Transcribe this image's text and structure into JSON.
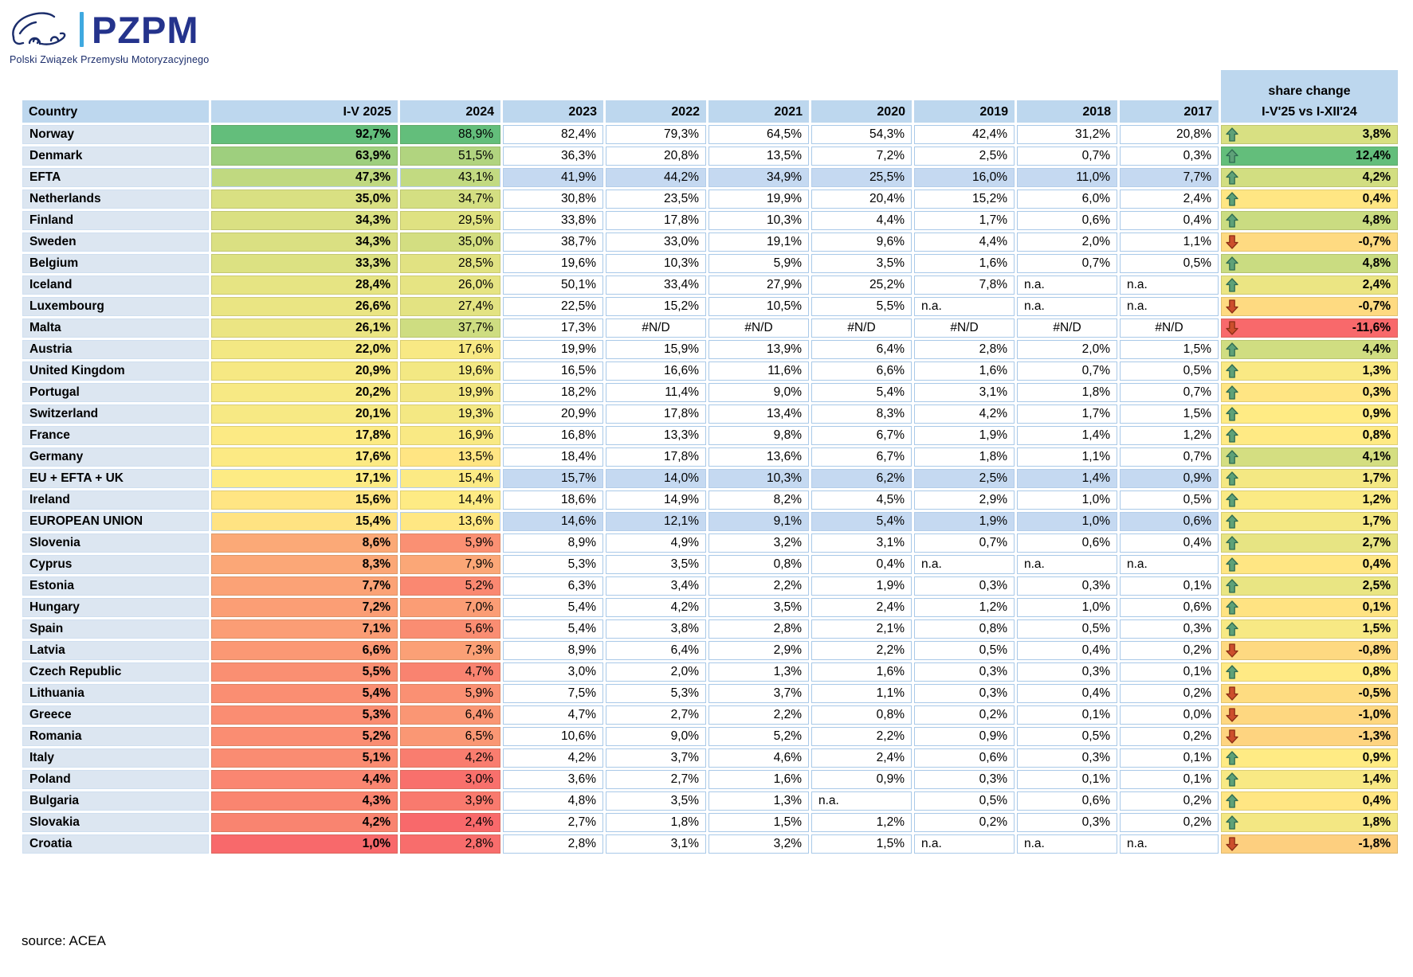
{
  "logo": {
    "acronym": "PZPM",
    "subtitle": "Polski Związek Przemysłu Motoryzacyjnego"
  },
  "header": {
    "share_change_line1": "share change",
    "share_change_line2": "I-V'25 vs I-XII'24"
  },
  "footer": {
    "source": "source: ACEA"
  },
  "colors": {
    "header_blue": "#BDD7EE",
    "country_cell_blue": "#DCE6F1",
    "aggregate_row_blue": "#C5D9F1",
    "cell_border_blue": "#A9C9E8",
    "logo_navy": "#24338C",
    "logo_light_blue": "#3FA9E0",
    "up_arrow": "#5EA178",
    "up_arrow_border": "#2F6B52",
    "down_arrow": "#CC4E2C",
    "down_arrow_border": "#8C2F16"
  },
  "chart_data": {
    "type": "table",
    "unit": "%",
    "source": "ACEA",
    "columns": [
      "Country",
      "I-V 2025",
      "2024",
      "2023",
      "2022",
      "2021",
      "2020",
      "2019",
      "2018",
      "2017",
      "share change I-V'25 vs I-XII'24"
    ],
    "scale_colors": {
      "low": "#F8696B",
      "mid": "#FFEB84",
      "high": "#63BE7B"
    },
    "col_scales": {
      "v2025": {
        "min": 1.0,
        "mid": 16.35,
        "max": 92.7
      },
      "v2024": {
        "min": 2.4,
        "mid": 14.0,
        "max": 88.9
      },
      "change": {
        "min": -11.6,
        "mid": 0.9,
        "max": 12.4
      }
    },
    "rows": [
      {
        "country": "Norway",
        "cells": [
          "92,7%",
          "88,9%",
          "82,4%",
          "79,3%",
          "64,5%",
          "54,3%",
          "42,4%",
          "31,2%",
          "20,8%"
        ],
        "change": "3,8%",
        "trend": "up",
        "agg": false
      },
      {
        "country": "Denmark",
        "cells": [
          "63,9%",
          "51,5%",
          "36,3%",
          "20,8%",
          "13,5%",
          "7,2%",
          "2,5%",
          "0,7%",
          "0,3%"
        ],
        "change": "12,4%",
        "trend": "up",
        "agg": false
      },
      {
        "country": "EFTA",
        "cells": [
          "47,3%",
          "43,1%",
          "41,9%",
          "44,2%",
          "34,9%",
          "25,5%",
          "16,0%",
          "11,0%",
          "7,7%"
        ],
        "change": "4,2%",
        "trend": "up",
        "agg": true
      },
      {
        "country": "Netherlands",
        "cells": [
          "35,0%",
          "34,7%",
          "30,8%",
          "23,5%",
          "19,9%",
          "20,4%",
          "15,2%",
          "6,0%",
          "2,4%"
        ],
        "change": "0,4%",
        "trend": "up",
        "agg": false
      },
      {
        "country": "Finland",
        "cells": [
          "34,3%",
          "29,5%",
          "33,8%",
          "17,8%",
          "10,3%",
          "4,4%",
          "1,7%",
          "0,6%",
          "0,4%"
        ],
        "change": "4,8%",
        "trend": "up",
        "agg": false
      },
      {
        "country": "Sweden",
        "cells": [
          "34,3%",
          "35,0%",
          "38,7%",
          "33,0%",
          "19,1%",
          "9,6%",
          "4,4%",
          "2,0%",
          "1,1%"
        ],
        "change": "-0,7%",
        "trend": "down",
        "agg": false
      },
      {
        "country": "Belgium",
        "cells": [
          "33,3%",
          "28,5%",
          "19,6%",
          "10,3%",
          "5,9%",
          "3,5%",
          "1,6%",
          "0,7%",
          "0,5%"
        ],
        "change": "4,8%",
        "trend": "up",
        "agg": false
      },
      {
        "country": "Iceland",
        "cells": [
          "28,4%",
          "26,0%",
          "50,1%",
          "33,4%",
          "27,9%",
          "25,2%",
          "7,8%",
          "n.a.",
          "n.a."
        ],
        "change": "2,4%",
        "trend": "up",
        "agg": false
      },
      {
        "country": "Luxembourg",
        "cells": [
          "26,6%",
          "27,4%",
          "22,5%",
          "15,2%",
          "10,5%",
          "5,5%",
          "n.a.",
          "n.a.",
          "n.a."
        ],
        "change": "-0,7%",
        "trend": "down",
        "agg": false
      },
      {
        "country": "Malta",
        "cells": [
          "26,1%",
          "37,7%",
          "17,3%",
          "#N/D",
          "#N/D",
          "#N/D",
          "#N/D",
          "#N/D",
          "#N/D"
        ],
        "change": "-11,6%",
        "trend": "down",
        "agg": false
      },
      {
        "country": "Austria",
        "cells": [
          "22,0%",
          "17,6%",
          "19,9%",
          "15,9%",
          "13,9%",
          "6,4%",
          "2,8%",
          "2,0%",
          "1,5%"
        ],
        "change": "4,4%",
        "trend": "up",
        "agg": false
      },
      {
        "country": "United Kingdom",
        "cells": [
          "20,9%",
          "19,6%",
          "16,5%",
          "16,6%",
          "11,6%",
          "6,6%",
          "1,6%",
          "0,7%",
          "0,5%"
        ],
        "change": "1,3%",
        "trend": "up",
        "agg": false
      },
      {
        "country": "Portugal",
        "cells": [
          "20,2%",
          "19,9%",
          "18,2%",
          "11,4%",
          "9,0%",
          "5,4%",
          "3,1%",
          "1,8%",
          "0,7%"
        ],
        "change": "0,3%",
        "trend": "up",
        "agg": false
      },
      {
        "country": "Switzerland",
        "cells": [
          "20,1%",
          "19,3%",
          "20,9%",
          "17,8%",
          "13,4%",
          "8,3%",
          "4,2%",
          "1,7%",
          "1,5%"
        ],
        "change": "0,9%",
        "trend": "up",
        "agg": false
      },
      {
        "country": "France",
        "cells": [
          "17,8%",
          "16,9%",
          "16,8%",
          "13,3%",
          "9,8%",
          "6,7%",
          "1,9%",
          "1,4%",
          "1,2%"
        ],
        "change": "0,8%",
        "trend": "up",
        "agg": false
      },
      {
        "country": "Germany",
        "cells": [
          "17,6%",
          "13,5%",
          "18,4%",
          "17,8%",
          "13,6%",
          "6,7%",
          "1,8%",
          "1,1%",
          "0,7%"
        ],
        "change": "4,1%",
        "trend": "up",
        "agg": false
      },
      {
        "country": "EU + EFTA + UK",
        "cells": [
          "17,1%",
          "15,4%",
          "15,7%",
          "14,0%",
          "10,3%",
          "6,2%",
          "2,5%",
          "1,4%",
          "0,9%"
        ],
        "change": "1,7%",
        "trend": "up",
        "agg": true
      },
      {
        "country": "Ireland",
        "cells": [
          "15,6%",
          "14,4%",
          "18,6%",
          "14,9%",
          "8,2%",
          "4,5%",
          "2,9%",
          "1,0%",
          "0,5%"
        ],
        "change": "1,2%",
        "trend": "up",
        "agg": false
      },
      {
        "country": "EUROPEAN UNION",
        "cells": [
          "15,4%",
          "13,6%",
          "14,6%",
          "12,1%",
          "9,1%",
          "5,4%",
          "1,9%",
          "1,0%",
          "0,6%"
        ],
        "change": "1,7%",
        "trend": "up",
        "agg": true
      },
      {
        "country": "Slovenia",
        "cells": [
          "8,6%",
          "5,9%",
          "8,9%",
          "4,9%",
          "3,2%",
          "3,1%",
          "0,7%",
          "0,6%",
          "0,4%"
        ],
        "change": "2,7%",
        "trend": "up",
        "agg": false
      },
      {
        "country": "Cyprus",
        "cells": [
          "8,3%",
          "7,9%",
          "5,3%",
          "3,5%",
          "0,8%",
          "0,4%",
          "n.a.",
          "n.a.",
          "n.a."
        ],
        "change": "0,4%",
        "trend": "up",
        "agg": false
      },
      {
        "country": "Estonia",
        "cells": [
          "7,7%",
          "5,2%",
          "6,3%",
          "3,4%",
          "2,2%",
          "1,9%",
          "0,3%",
          "0,3%",
          "0,1%"
        ],
        "change": "2,5%",
        "trend": "up",
        "agg": false
      },
      {
        "country": "Hungary",
        "cells": [
          "7,2%",
          "7,0%",
          "5,4%",
          "4,2%",
          "3,5%",
          "2,4%",
          "1,2%",
          "1,0%",
          "0,6%"
        ],
        "change": "0,1%",
        "trend": "up",
        "agg": false
      },
      {
        "country": "Spain",
        "cells": [
          "7,1%",
          "5,6%",
          "5,4%",
          "3,8%",
          "2,8%",
          "2,1%",
          "0,8%",
          "0,5%",
          "0,3%"
        ],
        "change": "1,5%",
        "trend": "up",
        "agg": false
      },
      {
        "country": "Latvia",
        "cells": [
          "6,6%",
          "7,3%",
          "8,9%",
          "6,4%",
          "2,9%",
          "2,2%",
          "0,5%",
          "0,4%",
          "0,2%"
        ],
        "change": "-0,8%",
        "trend": "down",
        "agg": false
      },
      {
        "country": "Czech Republic",
        "cells": [
          "5,5%",
          "4,7%",
          "3,0%",
          "2,0%",
          "1,3%",
          "1,6%",
          "0,3%",
          "0,3%",
          "0,1%"
        ],
        "change": "0,8%",
        "trend": "up",
        "agg": false
      },
      {
        "country": "Lithuania",
        "cells": [
          "5,4%",
          "5,9%",
          "7,5%",
          "5,3%",
          "3,7%",
          "1,1%",
          "0,3%",
          "0,4%",
          "0,2%"
        ],
        "change": "-0,5%",
        "trend": "down",
        "agg": false
      },
      {
        "country": "Greece",
        "cells": [
          "5,3%",
          "6,4%",
          "4,7%",
          "2,7%",
          "2,2%",
          "0,8%",
          "0,2%",
          "0,1%",
          "0,0%"
        ],
        "change": "-1,0%",
        "trend": "down",
        "agg": false
      },
      {
        "country": "Romania",
        "cells": [
          "5,2%",
          "6,5%",
          "10,6%",
          "9,0%",
          "5,2%",
          "2,2%",
          "0,9%",
          "0,5%",
          "0,2%"
        ],
        "change": "-1,3%",
        "trend": "down",
        "agg": false
      },
      {
        "country": "Italy",
        "cells": [
          "5,1%",
          "4,2%",
          "4,2%",
          "3,7%",
          "4,6%",
          "2,4%",
          "0,6%",
          "0,3%",
          "0,1%"
        ],
        "change": "0,9%",
        "trend": "up",
        "agg": false
      },
      {
        "country": "Poland",
        "cells": [
          "4,4%",
          "3,0%",
          "3,6%",
          "2,7%",
          "1,6%",
          "0,9%",
          "0,3%",
          "0,1%",
          "0,1%"
        ],
        "change": "1,4%",
        "trend": "up",
        "agg": false
      },
      {
        "country": "Bulgaria",
        "cells": [
          "4,3%",
          "3,9%",
          "4,8%",
          "3,5%",
          "1,3%",
          "n.a.",
          "0,5%",
          "0,6%",
          "0,2%"
        ],
        "change": "0,4%",
        "trend": "up",
        "agg": false
      },
      {
        "country": "Slovakia",
        "cells": [
          "4,2%",
          "2,4%",
          "2,7%",
          "1,8%",
          "1,5%",
          "1,2%",
          "0,2%",
          "0,3%",
          "0,2%"
        ],
        "change": "1,8%",
        "trend": "up",
        "agg": false
      },
      {
        "country": "Croatia",
        "cells": [
          "1,0%",
          "2,8%",
          "2,8%",
          "3,1%",
          "3,2%",
          "1,5%",
          "n.a.",
          "n.a.",
          "n.a."
        ],
        "change": "-1,8%",
        "trend": "down",
        "agg": false
      }
    ]
  }
}
